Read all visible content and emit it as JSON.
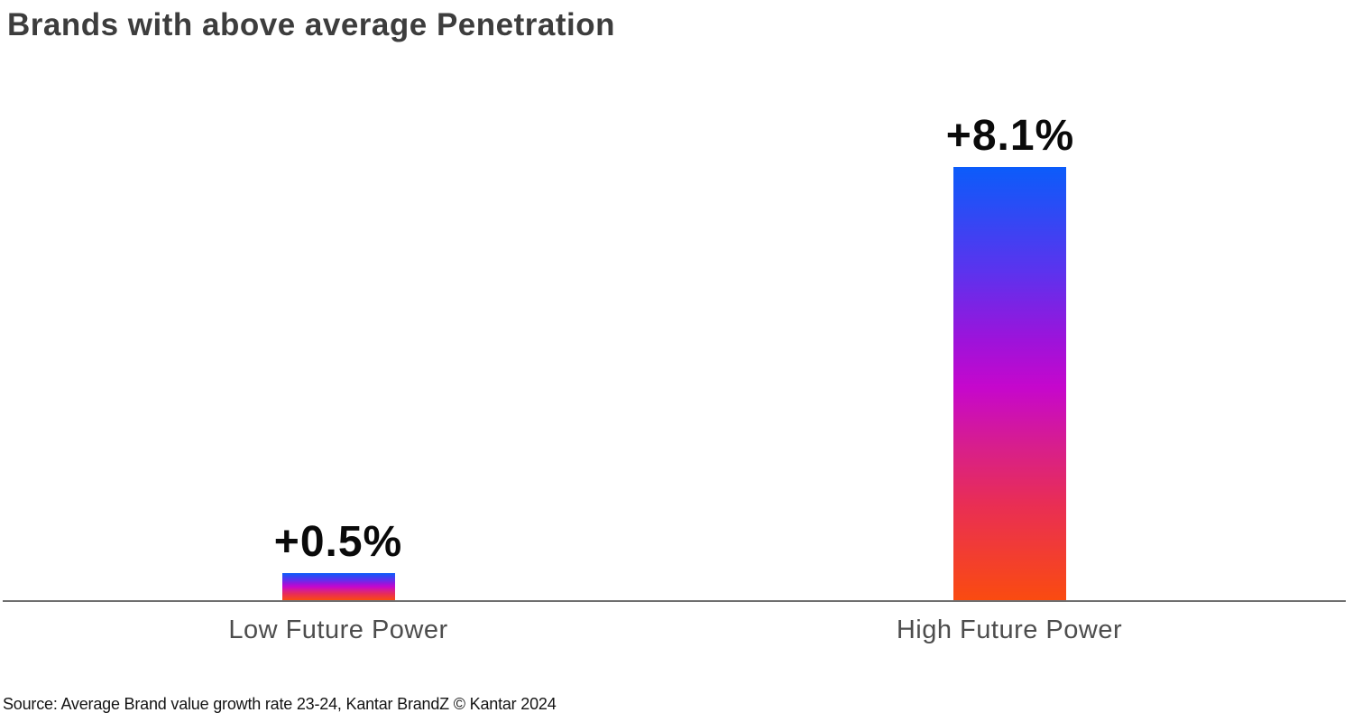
{
  "title": "Brands with above average Penetration",
  "source": "Source: Average Brand value growth rate 23-24, Kantar BrandZ © Kantar 2024",
  "chart_data": {
    "type": "bar",
    "categories": [
      "Low Future Power",
      "High Future Power"
    ],
    "values": [
      0.5,
      8.1
    ],
    "value_labels": [
      "+0.5%",
      "+8.1%"
    ],
    "title": "Brands with above average Penetration",
    "xlabel": "",
    "ylabel": "",
    "ylim": [
      0,
      8.1
    ],
    "grid": false,
    "legend": false,
    "unit": "percent brand value growth",
    "bar_gradient_stops": [
      {
        "color": "#0b5cfa",
        "pos": 0
      },
      {
        "color": "#5b33ee",
        "pos": 24
      },
      {
        "color": "#9d13da",
        "pos": 40
      },
      {
        "color": "#c607cc",
        "pos": 51
      },
      {
        "color": "#d81f8a",
        "pos": 65
      },
      {
        "color": "#e92e54",
        "pos": 78
      },
      {
        "color": "#fa4b10",
        "pos": 100
      }
    ],
    "axis_color": "#6f6f6f",
    "category_label_color": "#4d4d4d",
    "value_label_color": "#0a0a0a",
    "title_color": "#3d3d3d"
  }
}
